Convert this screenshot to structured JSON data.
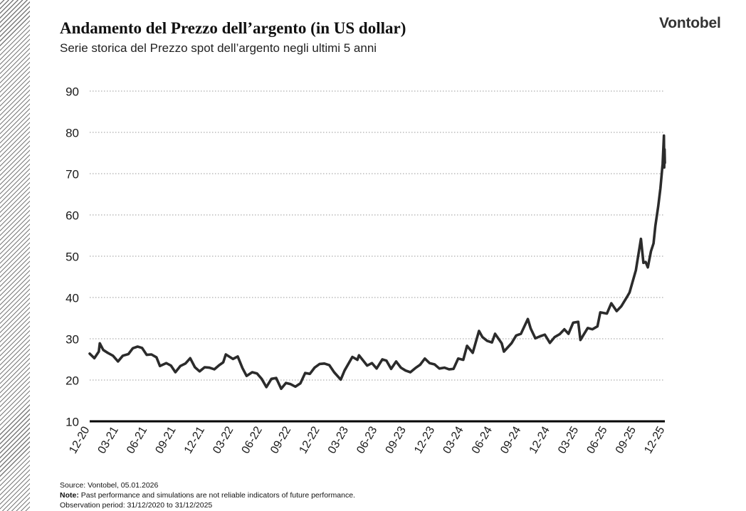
{
  "header": {
    "title": "Andamento del Prezzo dell’argento (in US dollar)",
    "subtitle": "Serie storica del Prezzo spot dell’argento negli ultimi 5 anni",
    "brand": "Vontobel"
  },
  "footer": {
    "source": "Source: Vontobel, 05.01.2026",
    "note_label": "Note:",
    "note_text": " Past performance and simulations are not reliable indicators of future performance.",
    "period": "Observation period: 31/12/2020 to 31/12/2025"
  },
  "colors": {
    "line": "#2b2b2b",
    "grid": "#9a9a9a",
    "axis": "#000000",
    "stripe": "#7a7a7a"
  },
  "chart_data": {
    "type": "line",
    "title": "Andamento del Prezzo dell’argento (in US dollar)",
    "subtitle": "Serie storica del Prezzo spot dell’argento negli ultimi 5 anni",
    "xlabel": "",
    "ylabel": "",
    "ylim": [
      10,
      90
    ],
    "yticks": [
      10,
      20,
      30,
      40,
      50,
      60,
      70,
      80,
      90
    ],
    "grid": "horizontal dotted",
    "xlim": [
      "2020-12-31",
      "2025-12-31"
    ],
    "xtick_labels": [
      "12-20",
      "03-21",
      "06-21",
      "09-21",
      "12-21",
      "03-22",
      "06-22",
      "09-22",
      "12-22",
      "03-23",
      "06-23",
      "09-23",
      "12-23",
      "03-24",
      "06-24",
      "09-24",
      "12-24",
      "03-25",
      "06-25",
      "09-25",
      "12-25"
    ],
    "series": [
      {
        "name": "",
        "points": [
          [
            "2020-12-31",
            26.4
          ],
          [
            "2021-01-15",
            25.3
          ],
          [
            "2021-01-29",
            26.9
          ],
          [
            "2021-02-01",
            28.9
          ],
          [
            "2021-02-12",
            27.3
          ],
          [
            "2021-02-26",
            26.6
          ],
          [
            "2021-03-15",
            25.9
          ],
          [
            "2021-03-31",
            24.5
          ],
          [
            "2021-04-15",
            25.9
          ],
          [
            "2021-05-03",
            26.3
          ],
          [
            "2021-05-17",
            27.7
          ],
          [
            "2021-06-01",
            28.1
          ],
          [
            "2021-06-15",
            27.8
          ],
          [
            "2021-06-30",
            26.1
          ],
          [
            "2021-07-15",
            26.2
          ],
          [
            "2021-07-31",
            25.5
          ],
          [
            "2021-08-11",
            23.4
          ],
          [
            "2021-08-31",
            24.1
          ],
          [
            "2021-09-15",
            23.5
          ],
          [
            "2021-09-29",
            21.9
          ],
          [
            "2021-10-15",
            23.4
          ],
          [
            "2021-10-31",
            24.0
          ],
          [
            "2021-11-15",
            25.3
          ],
          [
            "2021-11-30",
            23.1
          ],
          [
            "2021-12-15",
            22.1
          ],
          [
            "2021-12-31",
            23.1
          ],
          [
            "2022-01-15",
            23.0
          ],
          [
            "2022-01-31",
            22.6
          ],
          [
            "2022-02-15",
            23.6
          ],
          [
            "2022-02-28",
            24.3
          ],
          [
            "2022-03-08",
            26.2
          ],
          [
            "2022-03-31",
            25.1
          ],
          [
            "2022-04-15",
            25.7
          ],
          [
            "2022-04-30",
            22.9
          ],
          [
            "2022-05-13",
            21.0
          ],
          [
            "2022-05-31",
            21.9
          ],
          [
            "2022-06-15",
            21.6
          ],
          [
            "2022-06-30",
            20.3
          ],
          [
            "2022-07-15",
            18.3
          ],
          [
            "2022-07-31",
            20.3
          ],
          [
            "2022-08-15",
            20.5
          ],
          [
            "2022-08-31",
            17.9
          ],
          [
            "2022-09-15",
            19.3
          ],
          [
            "2022-09-30",
            19.0
          ],
          [
            "2022-10-15",
            18.4
          ],
          [
            "2022-10-31",
            19.2
          ],
          [
            "2022-11-15",
            21.7
          ],
          [
            "2022-11-30",
            21.5
          ],
          [
            "2022-12-15",
            23.0
          ],
          [
            "2022-12-31",
            23.9
          ],
          [
            "2023-01-15",
            24.0
          ],
          [
            "2023-01-31",
            23.6
          ],
          [
            "2023-02-15",
            21.9
          ],
          [
            "2023-03-08",
            20.1
          ],
          [
            "2023-03-20",
            22.3
          ],
          [
            "2023-04-14",
            25.6
          ],
          [
            "2023-04-30",
            24.9
          ],
          [
            "2023-05-05",
            26.0
          ],
          [
            "2023-05-31",
            23.5
          ],
          [
            "2023-06-15",
            24.1
          ],
          [
            "2023-06-30",
            22.8
          ],
          [
            "2023-07-18",
            25.0
          ],
          [
            "2023-07-31",
            24.7
          ],
          [
            "2023-08-15",
            22.7
          ],
          [
            "2023-08-31",
            24.5
          ],
          [
            "2023-09-15",
            23.0
          ],
          [
            "2023-09-30",
            22.3
          ],
          [
            "2023-10-15",
            21.9
          ],
          [
            "2023-10-31",
            22.9
          ],
          [
            "2023-11-15",
            23.7
          ],
          [
            "2023-11-30",
            25.2
          ],
          [
            "2023-12-15",
            24.1
          ],
          [
            "2023-12-31",
            23.8
          ],
          [
            "2024-01-15",
            22.8
          ],
          [
            "2024-01-31",
            23.0
          ],
          [
            "2024-02-15",
            22.6
          ],
          [
            "2024-02-29",
            22.7
          ],
          [
            "2024-03-15",
            25.2
          ],
          [
            "2024-03-31",
            24.9
          ],
          [
            "2024-04-12",
            28.3
          ],
          [
            "2024-04-30",
            26.6
          ],
          [
            "2024-05-20",
            31.9
          ],
          [
            "2024-05-31",
            30.4
          ],
          [
            "2024-06-15",
            29.5
          ],
          [
            "2024-06-30",
            29.1
          ],
          [
            "2024-07-10",
            31.2
          ],
          [
            "2024-07-31",
            28.9
          ],
          [
            "2024-08-07",
            26.9
          ],
          [
            "2024-08-31",
            28.9
          ],
          [
            "2024-09-15",
            30.8
          ],
          [
            "2024-09-30",
            31.2
          ],
          [
            "2024-10-22",
            34.8
          ],
          [
            "2024-10-31",
            32.5
          ],
          [
            "2024-11-15",
            30.1
          ],
          [
            "2024-11-30",
            30.6
          ],
          [
            "2024-12-15",
            31.0
          ],
          [
            "2024-12-31",
            29.0
          ],
          [
            "2025-01-15",
            30.4
          ],
          [
            "2025-01-31",
            31.1
          ],
          [
            "2025-02-15",
            32.3
          ],
          [
            "2025-02-28",
            31.2
          ],
          [
            "2025-03-15",
            33.9
          ],
          [
            "2025-03-31",
            34.1
          ],
          [
            "2025-04-07",
            29.7
          ],
          [
            "2025-04-30",
            32.6
          ],
          [
            "2025-05-15",
            32.3
          ],
          [
            "2025-05-31",
            33.0
          ],
          [
            "2025-06-09",
            36.4
          ],
          [
            "2025-06-30",
            36.1
          ],
          [
            "2025-07-14",
            38.6
          ],
          [
            "2025-07-31",
            36.7
          ],
          [
            "2025-08-15",
            37.9
          ],
          [
            "2025-08-31",
            39.9
          ],
          [
            "2025-09-10",
            41.2
          ],
          [
            "2025-09-30",
            46.6
          ],
          [
            "2025-10-16",
            54.2
          ],
          [
            "2025-10-24",
            48.4
          ],
          [
            "2025-10-31",
            48.6
          ],
          [
            "2025-11-07",
            47.3
          ],
          [
            "2025-11-17",
            51.2
          ],
          [
            "2025-11-25",
            53.1
          ],
          [
            "2025-12-01",
            57.4
          ],
          [
            "2025-12-10",
            62.1
          ],
          [
            "2025-12-17",
            66.5
          ],
          [
            "2025-12-24",
            72.4
          ],
          [
            "2025-12-28",
            79.2
          ],
          [
            "2025-12-29",
            71.5
          ],
          [
            "2025-12-30",
            75.9
          ],
          [
            "2025-12-31",
            72.6
          ]
        ]
      }
    ]
  }
}
